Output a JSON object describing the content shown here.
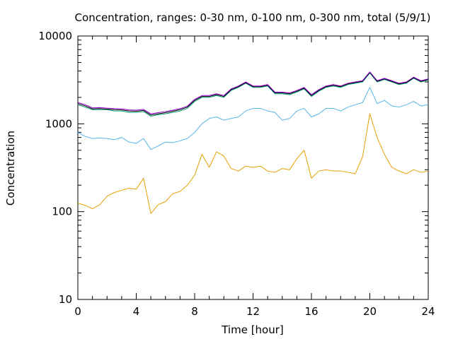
{
  "chart_data": {
    "type": "line",
    "title": "Concentration, ranges: 0-30 nm, 0-100 nm, 0-300 nm, total (5/9/1)",
    "xlabel": "Time [hour]",
    "ylabel": "Concentration",
    "xlim": [
      0,
      24
    ],
    "ylim": [
      10,
      10000
    ],
    "yscale": "log",
    "grid": false,
    "x_ticks": [
      0,
      4,
      8,
      12,
      16,
      20,
      24
    ],
    "x_tick_labels": [
      "0",
      "4",
      "8",
      "12",
      "16",
      "20",
      "24"
    ],
    "y_ticks": [
      10,
      100,
      1000,
      10000
    ],
    "y_tick_labels": [
      "10",
      "100",
      "1000",
      "10000"
    ],
    "x": [
      0,
      0.5,
      1,
      1.5,
      2,
      2.5,
      3,
      3.5,
      4,
      4.5,
      5,
      5.5,
      6,
      6.5,
      7,
      7.5,
      8,
      8.5,
      9,
      9.5,
      10,
      10.5,
      11,
      11.5,
      12,
      12.5,
      13,
      13.5,
      14,
      14.5,
      15,
      15.5,
      16,
      16.5,
      17,
      17.5,
      18,
      18.5,
      19,
      19.5,
      20,
      20.5,
      21,
      21.5,
      22,
      22.5,
      23,
      23.5,
      24
    ],
    "series": [
      {
        "color": "#e6a000",
        "values": [
          125,
          118,
          108,
          120,
          150,
          165,
          175,
          185,
          180,
          240,
          95,
          120,
          130,
          160,
          170,
          200,
          260,
          450,
          320,
          480,
          430,
          310,
          290,
          330,
          320,
          330,
          290,
          280,
          310,
          300,
          400,
          500,
          240,
          290,
          300,
          290,
          290,
          280,
          270,
          420,
          1300,
          700,
          450,
          320,
          290,
          270,
          300,
          280,
          290
        ]
      },
      {
        "color": "#56b4e9",
        "values": [
          800,
          720,
          680,
          690,
          680,
          660,
          700,
          620,
          600,
          680,
          510,
          560,
          620,
          610,
          640,
          680,
          800,
          1000,
          1150,
          1200,
          1100,
          1150,
          1200,
          1400,
          1500,
          1500,
          1400,
          1350,
          1100,
          1150,
          1400,
          1500,
          1200,
          1300,
          1500,
          1500,
          1400,
          1550,
          1650,
          1750,
          2600,
          1700,
          1850,
          1600,
          1550,
          1650,
          1800,
          1600,
          1650
        ]
      },
      {
        "color": "#009e73",
        "values": [
          1650,
          1550,
          1450,
          1450,
          1450,
          1400,
          1400,
          1350,
          1350,
          1380,
          1220,
          1270,
          1300,
          1350,
          1400,
          1500,
          1800,
          2000,
          2000,
          2100,
          2000,
          2400,
          2600,
          2900,
          2600,
          2600,
          2700,
          2200,
          2200,
          2150,
          2300,
          2500,
          2050,
          2350,
          2600,
          2700,
          2600,
          2800,
          2900,
          3000,
          3800,
          3000,
          3200,
          3000,
          2800,
          2900,
          3300,
          3000,
          3150
        ]
      },
      {
        "color": "#000000",
        "values": [
          1700,
          1600,
          1480,
          1490,
          1470,
          1450,
          1440,
          1400,
          1390,
          1420,
          1260,
          1300,
          1340,
          1390,
          1450,
          1550,
          1850,
          2050,
          2050,
          2150,
          2050,
          2450,
          2650,
          2950,
          2650,
          2650,
          2750,
          2250,
          2250,
          2200,
          2350,
          2550,
          2100,
          2400,
          2650,
          2750,
          2650,
          2850,
          2950,
          3050,
          3850,
          3050,
          3250,
          3050,
          2850,
          2950,
          3350,
          3050,
          3200
        ]
      },
      {
        "color": "#9400d3",
        "values": [
          1750,
          1650,
          1520,
          1530,
          1510,
          1490,
          1480,
          1440,
          1430,
          1460,
          1300,
          1340,
          1380,
          1430,
          1490,
          1590,
          1900,
          2100,
          2100,
          2200,
          2100,
          2500,
          2700,
          3000,
          2700,
          2700,
          2800,
          2300,
          2300,
          2250,
          2400,
          2600,
          2150,
          2450,
          2700,
          2800,
          2700,
          2900,
          3000,
          3100,
          3900,
          3100,
          3300,
          3100,
          2900,
          3000,
          3400,
          3100,
          3250
        ]
      }
    ]
  }
}
